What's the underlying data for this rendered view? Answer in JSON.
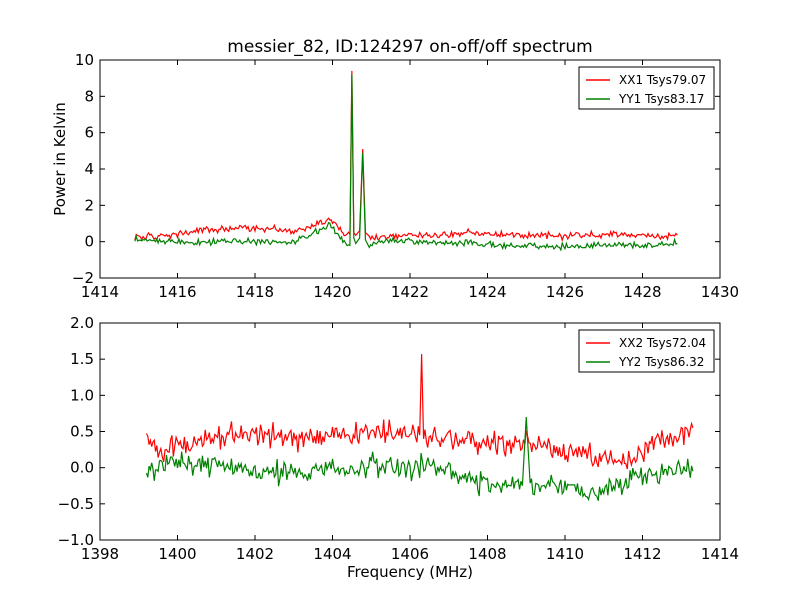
{
  "title": "messier_82, ID:124297 on-off/off spectrum",
  "xlabel": "Frequency (MHz)",
  "chart_data": [
    {
      "type": "line",
      "title": "messier_82, ID:124297 on-off/off spectrum",
      "xlabel": "",
      "ylabel": "Power in Kelvin",
      "xlim": [
        1414,
        1430
      ],
      "ylim": [
        -2,
        10
      ],
      "xticks": [
        "1414",
        "1416",
        "1418",
        "1420",
        "1422",
        "1424",
        "1426",
        "1428",
        "1430"
      ],
      "yticks": [
        "−2",
        "0",
        "2",
        "4",
        "6",
        "8",
        "10"
      ],
      "legend_position": "upper-right",
      "grid": false,
      "series": [
        {
          "name": "XX1 Tsys79.07",
          "color": "#ff0000",
          "x": [
            1414.9,
            1415.5,
            1416.0,
            1416.5,
            1417.0,
            1417.5,
            1418.0,
            1418.5,
            1419.0,
            1419.4,
            1419.7,
            1419.9,
            1420.1,
            1420.3,
            1420.45,
            1420.5,
            1420.55,
            1420.6,
            1420.7,
            1420.78,
            1420.85,
            1420.95,
            1421.2,
            1421.6,
            1422.0,
            1422.5,
            1423.0,
            1423.5,
            1424.0,
            1424.5,
            1425.0,
            1425.5,
            1426.0,
            1426.5,
            1427.0,
            1427.5,
            1428.0,
            1428.5,
            1428.9
          ],
          "y": [
            0.3,
            0.25,
            0.4,
            0.6,
            0.65,
            0.7,
            0.75,
            0.7,
            0.55,
            0.8,
            1.1,
            1.25,
            1.0,
            0.4,
            0.4,
            9.4,
            0.5,
            0.35,
            0.6,
            5.1,
            0.5,
            0.25,
            0.25,
            0.3,
            0.35,
            0.35,
            0.4,
            0.5,
            0.45,
            0.4,
            0.35,
            0.35,
            0.3,
            0.35,
            0.4,
            0.4,
            0.35,
            0.3,
            0.35
          ]
        },
        {
          "name": "YY1 Tsys83.17",
          "color": "#008000",
          "x": [
            1414.9,
            1415.5,
            1416.0,
            1416.5,
            1417.0,
            1417.5,
            1418.0,
            1418.5,
            1419.0,
            1419.4,
            1419.7,
            1419.9,
            1420.1,
            1420.3,
            1420.45,
            1420.5,
            1420.55,
            1420.6,
            1420.7,
            1420.78,
            1420.85,
            1420.95,
            1421.2,
            1421.6,
            1422.0,
            1422.5,
            1423.0,
            1423.5,
            1424.0,
            1424.5,
            1425.0,
            1425.5,
            1426.0,
            1426.5,
            1427.0,
            1427.5,
            1428.0,
            1428.5,
            1428.9
          ],
          "y": [
            0.1,
            0.05,
            0.0,
            -0.05,
            0.0,
            0.05,
            0.0,
            -0.05,
            0.0,
            0.3,
            0.7,
            0.95,
            0.6,
            0.0,
            -0.2,
            9.2,
            0.2,
            -0.1,
            0.2,
            4.9,
            0.1,
            -0.3,
            0.0,
            0.05,
            0.0,
            -0.05,
            -0.05,
            -0.1,
            -0.15,
            -0.2,
            -0.2,
            -0.25,
            -0.25,
            -0.25,
            -0.2,
            -0.2,
            -0.2,
            -0.15,
            -0.1
          ]
        }
      ]
    },
    {
      "type": "line",
      "title": "",
      "xlabel": "Frequency (MHz)",
      "ylabel": "",
      "xlim": [
        1398,
        1414
      ],
      "ylim": [
        -1.0,
        2.0
      ],
      "xticks": [
        "1398",
        "1400",
        "1402",
        "1404",
        "1406",
        "1408",
        "1410",
        "1412",
        "1414"
      ],
      "yticks": [
        "−1.0",
        "−0.5",
        "0.0",
        "0.5",
        "1.0",
        "1.5",
        "2.0"
      ],
      "legend_position": "upper-right",
      "grid": false,
      "series": [
        {
          "name": "XX2 Tsys72.04",
          "color": "#ff0000",
          "x": [
            1399.2,
            1399.5,
            1400.0,
            1400.5,
            1401.0,
            1401.5,
            1402.0,
            1402.5,
            1403.0,
            1403.5,
            1404.0,
            1404.5,
            1405.0,
            1405.5,
            1406.0,
            1406.25,
            1406.3,
            1406.35,
            1406.6,
            1407.0,
            1407.5,
            1408.0,
            1408.5,
            1409.0,
            1409.5,
            1410.0,
            1410.5,
            1411.0,
            1411.5,
            1412.0,
            1412.5,
            1413.0,
            1413.3
          ],
          "y": [
            0.4,
            0.25,
            0.3,
            0.35,
            0.4,
            0.45,
            0.5,
            0.45,
            0.4,
            0.4,
            0.45,
            0.45,
            0.5,
            0.5,
            0.45,
            0.45,
            1.57,
            0.4,
            0.4,
            0.4,
            0.35,
            0.35,
            0.3,
            0.35,
            0.3,
            0.2,
            0.15,
            0.1,
            0.05,
            0.2,
            0.4,
            0.4,
            0.55
          ]
        },
        {
          "name": "YY2 Tsys86.32",
          "color": "#008000",
          "x": [
            1399.2,
            1399.5,
            1400.0,
            1400.5,
            1401.0,
            1401.5,
            1402.0,
            1402.5,
            1403.0,
            1403.5,
            1404.0,
            1404.5,
            1405.0,
            1405.5,
            1406.0,
            1406.5,
            1407.0,
            1407.5,
            1408.0,
            1408.5,
            1408.9,
            1409.0,
            1409.1,
            1409.5,
            1410.0,
            1410.5,
            1411.0,
            1411.5,
            1412.0,
            1412.5,
            1413.0,
            1413.3
          ],
          "y": [
            -0.1,
            0.0,
            0.05,
            0.0,
            0.05,
            0.0,
            -0.05,
            -0.05,
            -0.1,
            -0.05,
            0.0,
            0.0,
            0.05,
            0.05,
            0.0,
            0.0,
            -0.05,
            -0.15,
            -0.25,
            -0.25,
            -0.25,
            0.7,
            -0.2,
            -0.25,
            -0.25,
            -0.35,
            -0.35,
            -0.2,
            -0.1,
            -0.05,
            0.0,
            -0.05
          ]
        }
      ]
    }
  ]
}
